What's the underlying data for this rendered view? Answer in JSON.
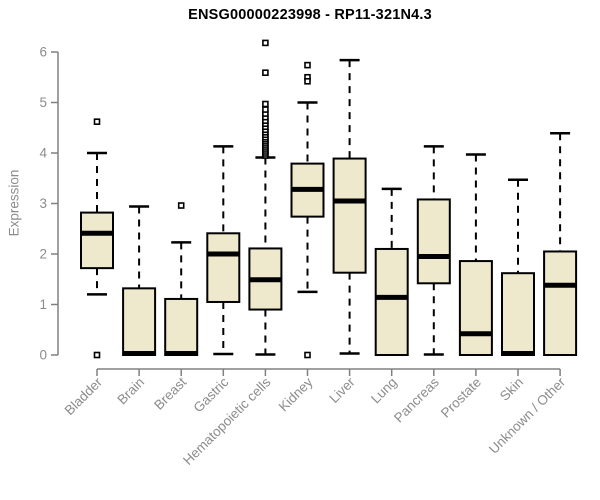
{
  "chart_data": {
    "type": "boxplot",
    "title": "ENSG00000223998 - RP11-321N4.3",
    "ylabel": "Expression",
    "xlabel": "",
    "ylim": [
      0,
      6
    ],
    "yticks": [
      0,
      1,
      2,
      3,
      4,
      5,
      6
    ],
    "grid": false,
    "legend": "none",
    "outlier_marker": "open-square",
    "categories": [
      "Bladder",
      "Brain",
      "Breast",
      "Gastric",
      "Hematopoietic cells",
      "Kidney",
      "Liver",
      "Lung",
      "Pancreas",
      "Prostate",
      "Skin",
      "Unknown / Other"
    ],
    "series": [
      {
        "name": "Bladder",
        "whisker_low": 1.2,
        "q1": 1.72,
        "median": 2.41,
        "q3": 2.82,
        "whisker_high": 4.0,
        "outliers": [
          4.62,
          0
        ]
      },
      {
        "name": "Brain",
        "whisker_low": null,
        "q1": 0,
        "median": 0.03,
        "q3": 1.32,
        "whisker_high": 2.94,
        "outliers": []
      },
      {
        "name": "Breast",
        "whisker_low": null,
        "q1": 0,
        "median": 0.03,
        "q3": 1.11,
        "whisker_high": 2.23,
        "outliers": [
          2.96
        ]
      },
      {
        "name": "Gastric",
        "whisker_low": 0.02,
        "q1": 1.05,
        "median": 2.0,
        "q3": 2.41,
        "whisker_high": 4.13,
        "outliers": []
      },
      {
        "name": "Hematopoietic cells",
        "whisker_low": 0.01,
        "q1": 0.9,
        "median": 1.49,
        "q3": 2.11,
        "whisker_high": 3.91,
        "outliers": [
          3.95,
          3.99,
          4.03,
          4.07,
          4.11,
          4.15,
          4.19,
          4.23,
          4.27,
          4.31,
          4.36,
          4.41,
          4.46,
          4.52,
          4.58,
          4.64,
          4.71,
          4.78,
          4.86,
          4.97,
          5.59,
          6.18
        ]
      },
      {
        "name": "Kidney",
        "whisker_low": 1.25,
        "q1": 2.74,
        "median": 3.28,
        "q3": 3.79,
        "whisker_high": 5.0,
        "outliers": [
          5.74,
          5.5,
          5.42,
          0
        ]
      },
      {
        "name": "Liver",
        "whisker_low": 0.03,
        "q1": 1.63,
        "median": 3.05,
        "q3": 3.89,
        "whisker_high": 5.84,
        "outliers": []
      },
      {
        "name": "Lung",
        "whisker_low": null,
        "q1": 0,
        "median": 1.14,
        "q3": 2.1,
        "whisker_high": 3.29,
        "outliers": []
      },
      {
        "name": "Pancreas",
        "whisker_low": 0.01,
        "q1": 1.42,
        "median": 1.95,
        "q3": 3.08,
        "whisker_high": 4.13,
        "outliers": []
      },
      {
        "name": "Prostate",
        "whisker_low": null,
        "q1": 0,
        "median": 0.42,
        "q3": 1.86,
        "whisker_high": 3.97,
        "outliers": []
      },
      {
        "name": "Skin",
        "whisker_low": null,
        "q1": 0,
        "median": 0.03,
        "q3": 1.62,
        "whisker_high": 3.47,
        "outliers": []
      },
      {
        "name": "Unknown / Other",
        "whisker_low": null,
        "q1": 0,
        "median": 1.38,
        "q3": 2.05,
        "whisker_high": 4.39,
        "outliers": []
      }
    ],
    "colors": {
      "box_fill": "#EEE8CD",
      "box_stroke": "#000000",
      "median": "#000000",
      "whisker": "#000000",
      "axis": "#808080",
      "tick_label": "#8c8c8c",
      "title": "#000000",
      "background": "#ffffff"
    }
  }
}
